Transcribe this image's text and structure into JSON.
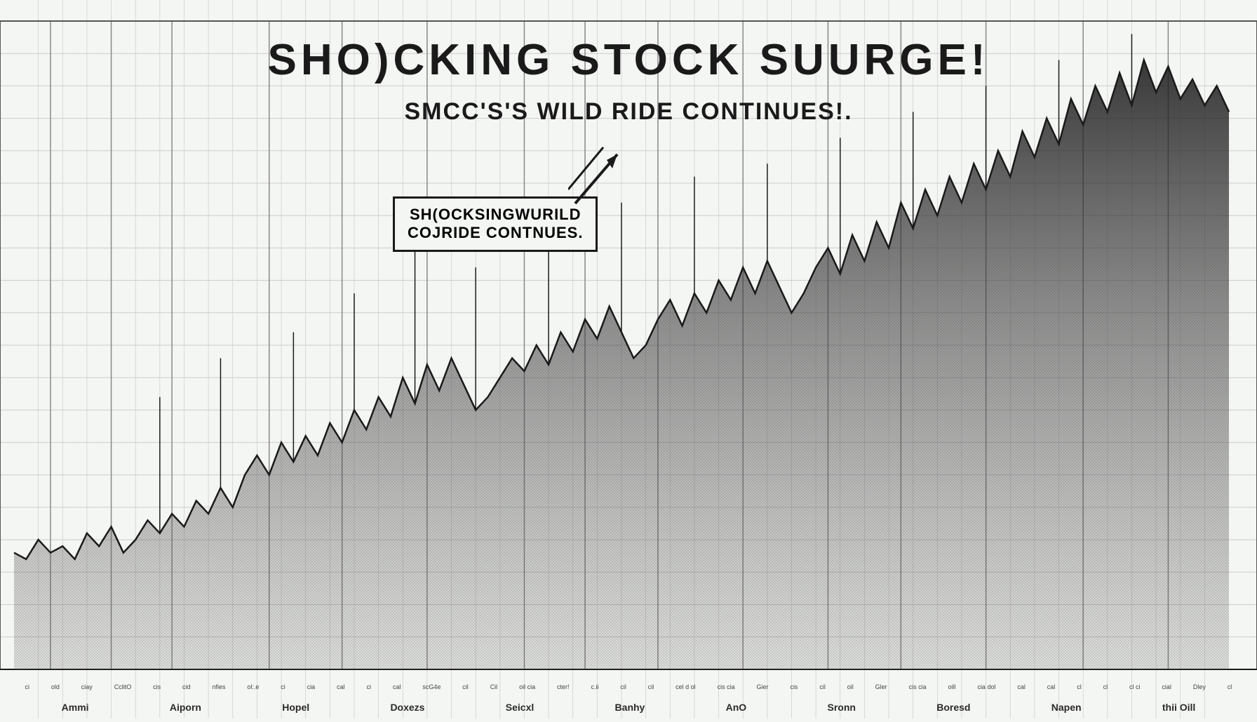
{
  "chart": {
    "type": "area",
    "title": "SHO)CKING  STOCK SUURGE!",
    "subtitle": "SMCC'S'S WILD RIDE CONTINUES!.",
    "callout": {
      "line1": "SH(OCKSINGWURILD",
      "line2": "COJRIDE CONTNUES."
    },
    "title_fontsize": 62,
    "subtitle_fontsize": 34,
    "callout_fontsize": 22,
    "background_color": "#f4f6f3",
    "line_color": "#1a1a1a",
    "fill_color": "#3a3a3a",
    "grid_color_major": "#888888",
    "grid_color_minor": "#cccccc",
    "xlim": [
      0,
      100
    ],
    "ylim": [
      0,
      100
    ],
    "h_gridlines": [
      5,
      10,
      15,
      20,
      25,
      30,
      35,
      40,
      45,
      50,
      55,
      60,
      65,
      70,
      75,
      80,
      85,
      90,
      95
    ],
    "v_gridlines_minor": [
      2,
      4,
      6,
      8,
      10,
      12,
      14,
      16,
      18,
      20,
      22,
      24,
      26,
      28,
      30,
      32,
      34,
      36,
      38,
      40,
      42,
      44,
      46,
      48,
      50,
      52,
      54,
      56,
      58,
      60,
      62,
      64,
      66,
      68,
      70,
      72,
      74,
      76,
      78,
      80,
      82,
      84,
      86,
      88,
      90,
      92,
      94,
      96,
      98
    ],
    "v_gridlines_major": [
      3,
      8,
      13,
      21,
      27,
      34,
      42,
      47,
      53,
      60,
      67,
      73,
      80,
      88,
      95
    ],
    "series": [
      {
        "x": 0,
        "y": 18
      },
      {
        "x": 1,
        "y": 17
      },
      {
        "x": 2,
        "y": 20
      },
      {
        "x": 3,
        "y": 18
      },
      {
        "x": 4,
        "y": 19
      },
      {
        "x": 5,
        "y": 17
      },
      {
        "x": 6,
        "y": 21
      },
      {
        "x": 7,
        "y": 19
      },
      {
        "x": 8,
        "y": 22
      },
      {
        "x": 9,
        "y": 18
      },
      {
        "x": 10,
        "y": 20
      },
      {
        "x": 11,
        "y": 23
      },
      {
        "x": 12,
        "y": 21
      },
      {
        "x": 13,
        "y": 24
      },
      {
        "x": 14,
        "y": 22
      },
      {
        "x": 15,
        "y": 26
      },
      {
        "x": 16,
        "y": 24
      },
      {
        "x": 17,
        "y": 28
      },
      {
        "x": 18,
        "y": 25
      },
      {
        "x": 19,
        "y": 30
      },
      {
        "x": 20,
        "y": 33
      },
      {
        "x": 21,
        "y": 30
      },
      {
        "x": 22,
        "y": 35
      },
      {
        "x": 23,
        "y": 32
      },
      {
        "x": 24,
        "y": 36
      },
      {
        "x": 25,
        "y": 33
      },
      {
        "x": 26,
        "y": 38
      },
      {
        "x": 27,
        "y": 35
      },
      {
        "x": 28,
        "y": 40
      },
      {
        "x": 29,
        "y": 37
      },
      {
        "x": 30,
        "y": 42
      },
      {
        "x": 31,
        "y": 39
      },
      {
        "x": 32,
        "y": 45
      },
      {
        "x": 33,
        "y": 41
      },
      {
        "x": 34,
        "y": 47
      },
      {
        "x": 35,
        "y": 43
      },
      {
        "x": 36,
        "y": 48
      },
      {
        "x": 37,
        "y": 44
      },
      {
        "x": 38,
        "y": 40
      },
      {
        "x": 39,
        "y": 42
      },
      {
        "x": 40,
        "y": 45
      },
      {
        "x": 41,
        "y": 48
      },
      {
        "x": 42,
        "y": 46
      },
      {
        "x": 43,
        "y": 50
      },
      {
        "x": 44,
        "y": 47
      },
      {
        "x": 45,
        "y": 52
      },
      {
        "x": 46,
        "y": 49
      },
      {
        "x": 47,
        "y": 54
      },
      {
        "x": 48,
        "y": 51
      },
      {
        "x": 49,
        "y": 56
      },
      {
        "x": 50,
        "y": 52
      },
      {
        "x": 51,
        "y": 48
      },
      {
        "x": 52,
        "y": 50
      },
      {
        "x": 53,
        "y": 54
      },
      {
        "x": 54,
        "y": 57
      },
      {
        "x": 55,
        "y": 53
      },
      {
        "x": 56,
        "y": 58
      },
      {
        "x": 57,
        "y": 55
      },
      {
        "x": 58,
        "y": 60
      },
      {
        "x": 59,
        "y": 57
      },
      {
        "x": 60,
        "y": 62
      },
      {
        "x": 61,
        "y": 58
      },
      {
        "x": 62,
        "y": 63
      },
      {
        "x": 63,
        "y": 59
      },
      {
        "x": 64,
        "y": 55
      },
      {
        "x": 65,
        "y": 58
      },
      {
        "x": 66,
        "y": 62
      },
      {
        "x": 67,
        "y": 65
      },
      {
        "x": 68,
        "y": 61
      },
      {
        "x": 69,
        "y": 67
      },
      {
        "x": 70,
        "y": 63
      },
      {
        "x": 71,
        "y": 69
      },
      {
        "x": 72,
        "y": 65
      },
      {
        "x": 73,
        "y": 72
      },
      {
        "x": 74,
        "y": 68
      },
      {
        "x": 75,
        "y": 74
      },
      {
        "x": 76,
        "y": 70
      },
      {
        "x": 77,
        "y": 76
      },
      {
        "x": 78,
        "y": 72
      },
      {
        "x": 79,
        "y": 78
      },
      {
        "x": 80,
        "y": 74
      },
      {
        "x": 81,
        "y": 80
      },
      {
        "x": 82,
        "y": 76
      },
      {
        "x": 83,
        "y": 83
      },
      {
        "x": 84,
        "y": 79
      },
      {
        "x": 85,
        "y": 85
      },
      {
        "x": 86,
        "y": 81
      },
      {
        "x": 87,
        "y": 88
      },
      {
        "x": 88,
        "y": 84
      },
      {
        "x": 89,
        "y": 90
      },
      {
        "x": 90,
        "y": 86
      },
      {
        "x": 91,
        "y": 92
      },
      {
        "x": 92,
        "y": 87
      },
      {
        "x": 93,
        "y": 94
      },
      {
        "x": 94,
        "y": 89
      },
      {
        "x": 95,
        "y": 93
      },
      {
        "x": 96,
        "y": 88
      },
      {
        "x": 97,
        "y": 91
      },
      {
        "x": 98,
        "y": 87
      },
      {
        "x": 99,
        "y": 90
      },
      {
        "x": 100,
        "y": 86
      }
    ],
    "spikes": [
      {
        "x": 12,
        "h": 42
      },
      {
        "x": 17,
        "h": 48
      },
      {
        "x": 23,
        "h": 52
      },
      {
        "x": 28,
        "h": 58
      },
      {
        "x": 33,
        "h": 70
      },
      {
        "x": 38,
        "h": 62
      },
      {
        "x": 44,
        "h": 66
      },
      {
        "x": 50,
        "h": 72
      },
      {
        "x": 56,
        "h": 76
      },
      {
        "x": 62,
        "h": 78
      },
      {
        "x": 68,
        "h": 82
      },
      {
        "x": 74,
        "h": 86
      },
      {
        "x": 80,
        "h": 90
      },
      {
        "x": 86,
        "h": 94
      },
      {
        "x": 92,
        "h": 98
      }
    ],
    "x_labels": [
      "Ammi",
      "Aiporn",
      "Hopel",
      "Doxezs",
      "Seicxl",
      "Banhy",
      "AnO",
      "Sronn",
      "Boresd",
      "Napen",
      "thii Oill"
    ],
    "x_ticks": [
      "ci",
      "old",
      "ciay",
      "CclitO",
      "cis",
      "cid",
      "nfies",
      "ol:.e",
      "ci",
      "cia",
      "cal",
      "ci",
      "cal",
      "scG4e",
      "cil",
      "Cil",
      "oil cia",
      "cter!",
      "c.ii",
      "cil",
      "cil",
      "cel d ol",
      "cis cia",
      "Gier",
      "cis",
      "cil",
      "oil",
      "Gler",
      "cis cia",
      "oill",
      "cia dol",
      "cal",
      "cal",
      "cl",
      "cl",
      "cl ci",
      "cial",
      "Dley",
      "cl"
    ]
  }
}
